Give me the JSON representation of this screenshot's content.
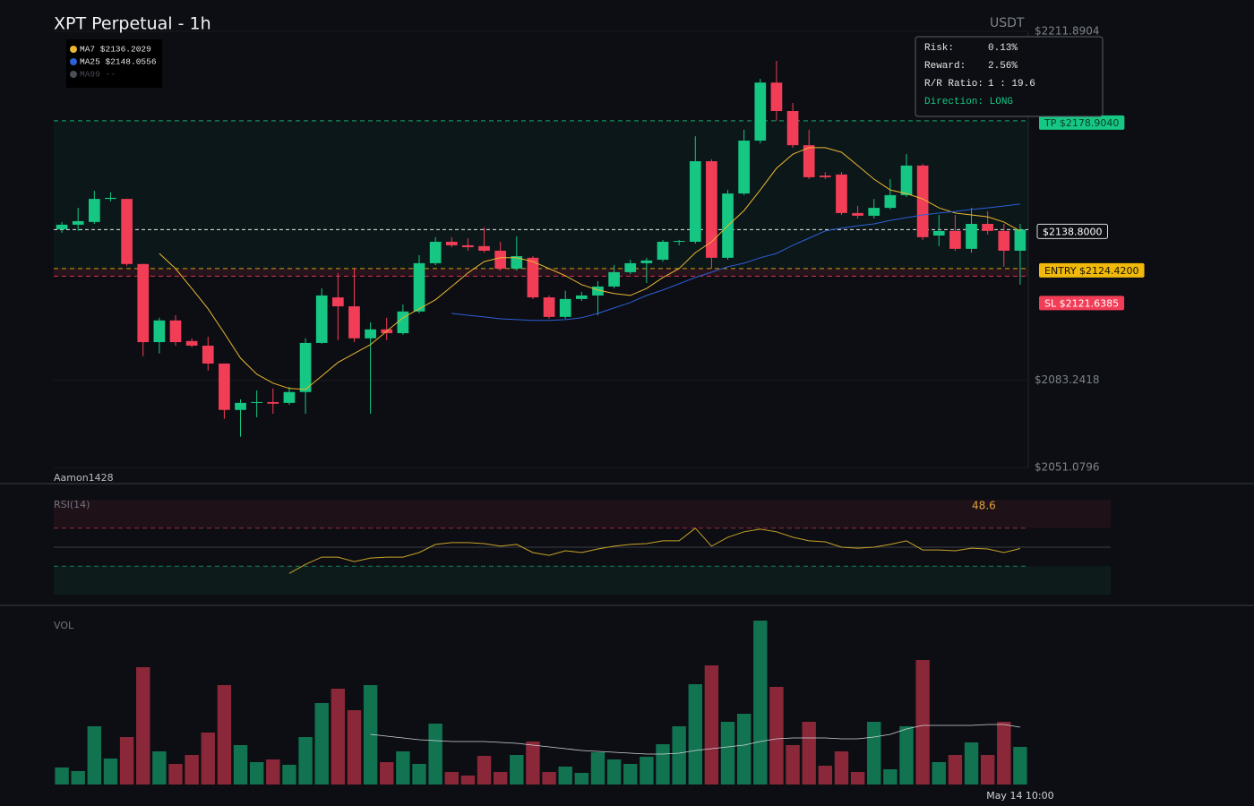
{
  "chart_data": [
    {
      "type": "candlestick",
      "title": "XPT Perpetual - 1h",
      "currency": "USDT",
      "watermark": "Aamon1428",
      "categories": [
        null,
        null,
        null,
        null,
        null,
        null,
        null,
        null,
        null,
        null,
        null,
        null,
        null,
        null,
        null,
        null,
        null,
        null,
        null,
        null,
        null,
        null,
        null,
        null,
        null,
        null,
        null,
        null,
        null,
        null,
        null,
        null,
        null,
        null,
        null,
        null,
        null,
        null,
        null,
        null,
        null,
        null,
        null,
        null,
        null,
        null,
        null,
        null,
        null,
        null,
        null,
        null,
        null,
        null,
        null,
        null,
        null,
        null,
        null,
        "May 14 10:00"
      ],
      "open": [
        2138.9,
        2140.6,
        2141.6,
        2150.1,
        2150.1,
        2126.1,
        2097.3,
        2105.3,
        2097.7,
        2096.0,
        2089.4,
        2072.3,
        2074.9,
        2075.2,
        2074.9,
        2078.9,
        2097.0,
        2113.8,
        2110.5,
        2098.7,
        2102.0,
        2100.6,
        2108.6,
        2126.4,
        2134.3,
        2133.0,
        2132.7,
        2131.0,
        2124.4,
        2128.4,
        2113.8,
        2106.6,
        2113.2,
        2114.5,
        2117.8,
        2123.1,
        2126.4,
        2127.7,
        2134.3,
        2134.3,
        2164.0,
        2128.4,
        2152.1,
        2171.6,
        2193.0,
        2182.5,
        2169.9,
        2158.7,
        2159.1,
        2144.9,
        2143.9,
        2146.8,
        2151.5,
        2162.4,
        2136.6,
        2138.3,
        2131.7,
        2140.9,
        2138.3,
        2131.0
      ],
      "high": [
        2141.6,
        2146.8,
        2153.1,
        2152.5,
        2150.1,
        2126.1,
        2106.3,
        2107.2,
        2098.7,
        2099.3,
        2089.4,
        2076.2,
        2079.5,
        2080.2,
        2080.8,
        2098.7,
        2117.1,
        2122.8,
        2124.4,
        2104.6,
        2106.3,
        2111.2,
        2129.4,
        2136.0,
        2136.0,
        2135.6,
        2139.6,
        2134.3,
        2136.3,
        2129.0,
        2114.5,
        2116.2,
        2115.8,
        2119.8,
        2125.7,
        2127.7,
        2128.4,
        2135.0,
        2135.0,
        2173.2,
        2164.7,
        2153.4,
        2175.6,
        2194.4,
        2201.0,
        2185.5,
        2175.6,
        2160.0,
        2160.0,
        2147.5,
        2150.1,
        2157.4,
        2166.6,
        2163.0,
        2144.2,
        2144.2,
        2146.8,
        2145.5,
        2140.9,
        2140.9
      ],
      "low": [
        2137.6,
        2138.3,
        2140.9,
        2149.2,
        2125.4,
        2092.1,
        2093.1,
        2096.0,
        2095.4,
        2086.8,
        2069.0,
        2062.4,
        2069.6,
        2070.9,
        2074.2,
        2070.9,
        2096.7,
        2098.0,
        2097.3,
        2070.9,
        2098.0,
        2100.0,
        2107.9,
        2125.7,
        2132.3,
        2131.0,
        2130.3,
        2123.7,
        2123.7,
        2113.2,
        2105.9,
        2105.9,
        2112.5,
        2107.2,
        2117.1,
        2122.4,
        2119.1,
        2127.0,
        2133.0,
        2133.6,
        2124.4,
        2127.7,
        2151.5,
        2170.6,
        2178.9,
        2169.0,
        2157.4,
        2157.4,
        2144.2,
        2142.9,
        2142.9,
        2146.2,
        2150.8,
        2135.0,
        2132.7,
        2131.0,
        2130.3,
        2137.0,
        2125.1,
        2118.5
      ],
      "close": [
        2140.6,
        2141.9,
        2150.1,
        2150.5,
        2126.1,
        2097.3,
        2105.3,
        2097.3,
        2096.0,
        2089.4,
        2072.3,
        2074.9,
        2075.2,
        2074.6,
        2078.9,
        2097.0,
        2114.5,
        2110.5,
        2098.7,
        2102.0,
        2100.6,
        2108.6,
        2126.4,
        2134.3,
        2133.0,
        2132.3,
        2131.0,
        2124.4,
        2129.0,
        2113.8,
        2106.6,
        2113.2,
        2114.5,
        2117.8,
        2123.1,
        2126.4,
        2127.4,
        2134.3,
        2134.6,
        2164.0,
        2128.4,
        2152.1,
        2171.6,
        2193.0,
        2182.5,
        2169.9,
        2158.1,
        2158.1,
        2144.9,
        2143.9,
        2146.8,
        2151.5,
        2162.4,
        2136.0,
        2138.3,
        2131.7,
        2140.9,
        2138.3,
        2131.0,
        2138.8
      ],
      "up_color": "#16c784",
      "down_color": "#f23d57",
      "ylim": [
        2051.0796,
        2211.8904
      ],
      "yticks": [
        {
          "value": 2051.0796,
          "label": "$2051.0796"
        },
        {
          "value": 2083.2418,
          "label": "$2083.2418"
        },
        {
          "value": 2211.8904,
          "label": "$2211.8904"
        }
      ],
      "series": [
        {
          "name": "MA7 $2136.2029",
          "color": "#e9b730",
          "values": [
            null,
            null,
            null,
            null,
            null,
            null,
            2130.0,
            2124.4,
            2117.1,
            2109.6,
            2100.6,
            2091.4,
            2085.5,
            2082.2,
            2080.2,
            2079.9,
            2084.8,
            2089.8,
            2093.1,
            2096.4,
            2101.3,
            2106.3,
            2109.6,
            2112.9,
            2117.8,
            2122.8,
            2127.0,
            2128.4,
            2128.4,
            2127.0,
            2124.4,
            2121.8,
            2118.5,
            2116.5,
            2115.2,
            2114.5,
            2117.1,
            2121.1,
            2124.4,
            2130.3,
            2134.3,
            2140.2,
            2145.8,
            2153.4,
            2161.4,
            2166.6,
            2169.0,
            2169.0,
            2167.3,
            2162.4,
            2157.4,
            2153.4,
            2152.1,
            2150.1,
            2146.8,
            2144.9,
            2144.2,
            2143.5,
            2141.6,
            2138.3
          ]
        },
        {
          "name": "MA25 $2148.0556",
          "color": "#2d5fd6",
          "values": [
            null,
            null,
            null,
            null,
            null,
            null,
            null,
            null,
            null,
            null,
            null,
            null,
            null,
            null,
            null,
            null,
            null,
            null,
            null,
            null,
            null,
            null,
            null,
            null,
            2107.9,
            2107.2,
            2106.6,
            2105.9,
            2105.6,
            2105.3,
            2105.3,
            2105.6,
            2106.3,
            2107.9,
            2109.9,
            2111.9,
            2114.5,
            2116.5,
            2118.8,
            2121.1,
            2123.1,
            2125.1,
            2126.4,
            2128.4,
            2130.0,
            2133.0,
            2135.6,
            2138.3,
            2139.3,
            2140.2,
            2140.9,
            2142.2,
            2143.2,
            2144.2,
            2144.9,
            2145.5,
            2146.2,
            2146.8,
            2147.5,
            2148.2
          ]
        },
        {
          "name": "MA99 --",
          "color": "#4a4d55",
          "values": [
            null,
            null,
            null,
            null,
            null,
            null,
            null,
            null,
            null,
            null,
            null,
            null,
            null,
            null,
            null,
            null,
            null,
            null,
            null,
            null,
            null,
            null,
            null,
            null,
            null,
            null,
            null,
            null,
            null,
            null,
            null,
            null,
            null,
            null,
            null,
            null,
            null,
            null,
            null,
            null,
            null,
            null,
            null,
            null,
            null,
            null,
            null,
            null,
            null,
            null,
            null,
            null,
            null,
            null,
            null,
            null,
            null,
            null,
            null,
            null
          ]
        }
      ],
      "levels": [
        {
          "label": "TP $2178.9040",
          "value": 2178.904,
          "color": "#16c784",
          "text_color": "#0b3d26"
        },
        {
          "label": "ENTRY $2124.4200",
          "value": 2124.42,
          "color": "#f0b90b",
          "text_color": "#1a1400"
        },
        {
          "label": "SL $2121.6385",
          "value": 2121.6385,
          "color": "#f23d57",
          "text_color": "#ffffff"
        }
      ],
      "current": {
        "label": "$2138.8000",
        "value": 2138.8
      },
      "info": [
        [
          "Risk:",
          "0.13%"
        ],
        [
          "Reward:",
          "2.56%"
        ],
        [
          "R/R Ratio:",
          "1 : 19.6"
        ]
      ],
      "direction": "Direction: LONG"
    },
    {
      "type": "line",
      "title": "RSI(14)",
      "ylim": [
        0,
        100
      ],
      "levels": [
        70,
        30
      ],
      "mid": 50,
      "last": 48.6,
      "series": [
        {
          "color": "#c9a227",
          "values": [
            null,
            null,
            null,
            null,
            null,
            null,
            null,
            null,
            null,
            null,
            null,
            null,
            null,
            null,
            22.4,
            31.9,
            39.5,
            39.5,
            34.8,
            38.6,
            39.5,
            39.5,
            44.3,
            52.9,
            54.8,
            54.8,
            53.8,
            51.0,
            52.9,
            44.3,
            41.4,
            46.2,
            44.3,
            48.1,
            51.0,
            52.9,
            53.8,
            56.7,
            56.7,
            70.0,
            51.0,
            60.5,
            66.2,
            69.0,
            66.2,
            60.5,
            56.7,
            55.7,
            50.0,
            49.0,
            50.0,
            52.9,
            56.7,
            47.1,
            47.1,
            46.2,
            49.0,
            48.1,
            44.3,
            48.6
          ]
        }
      ]
    },
    {
      "type": "bar",
      "title": "VOL",
      "ylim": [
        0,
        190
      ],
      "values": [
        19,
        15,
        65,
        29,
        53,
        131,
        37,
        23,
        33,
        58,
        111,
        44,
        25,
        28,
        22,
        53,
        91,
        107,
        83,
        111,
        25,
        37,
        23,
        68,
        14,
        10,
        32,
        14,
        33,
        48,
        14,
        20,
        13,
        36,
        28,
        23,
        31,
        45,
        65,
        112,
        133,
        70,
        79,
        183,
        109,
        44,
        70,
        21,
        37,
        14,
        70,
        17,
        65,
        139,
        25,
        33,
        47,
        33,
        70,
        42
      ],
      "ma": {
        "color": "#cfd3da",
        "values": [
          null,
          null,
          null,
          null,
          null,
          null,
          null,
          null,
          null,
          null,
          null,
          null,
          null,
          null,
          null,
          null,
          null,
          null,
          null,
          56,
          54,
          52,
          50,
          49,
          48,
          48,
          48,
          47,
          46,
          44,
          42,
          40,
          38,
          37,
          36,
          35,
          34,
          34,
          35,
          38,
          40,
          42,
          44,
          48,
          51,
          52,
          52,
          52,
          51,
          51,
          53,
          56,
          62,
          66,
          66,
          66,
          66,
          67,
          67,
          64
        ]
      }
    }
  ]
}
